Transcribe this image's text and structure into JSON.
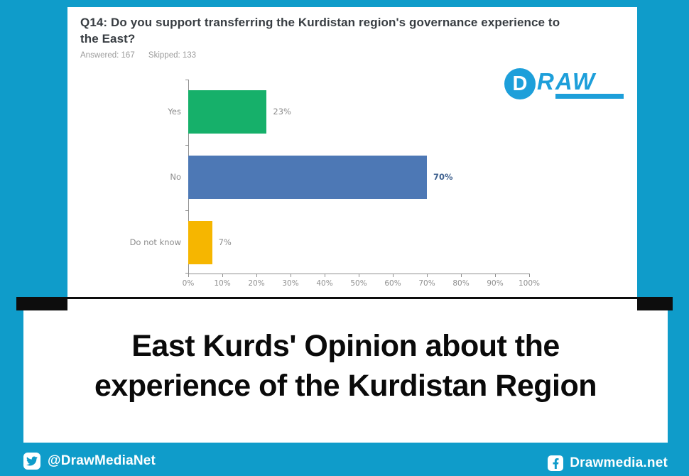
{
  "colors": {
    "background": "#0f9cca",
    "logo_cyan": "#1d9fda",
    "bar_green": "#16b06a",
    "bar_blue": "#4d78b5",
    "bar_yellow": "#f6b600",
    "black_bar": "#0d0d0d",
    "muted_text": "#8c8c8c"
  },
  "chart_card": {
    "question": "Q14: Do you support transferring the Kurdistan region's governance experience to the East?",
    "answered": "Answered: 167",
    "skipped": "Skipped: 133"
  },
  "logo": {
    "circle_letter": "D",
    "word": "RAW"
  },
  "chart_data": {
    "type": "bar",
    "orientation": "horizontal",
    "title": "Q14: Do you support transferring the Kurdistan region's governance experience to the East?",
    "answered": 167,
    "skipped": 133,
    "categories": [
      "Yes",
      "No",
      "Do not know"
    ],
    "values": [
      23,
      70,
      7
    ],
    "value_labels": [
      "23%",
      "70%",
      "7%"
    ],
    "bar_colors": [
      "#16b06a",
      "#4d78b5",
      "#f6b600"
    ],
    "value_label_colors": [
      "#8c8c8c",
      "#3f618f",
      "#8c8c8c"
    ],
    "value_label_bold": [
      false,
      true,
      false
    ],
    "xlim": [
      0,
      100
    ],
    "x_tick_labels": [
      "0%",
      "10%",
      "20%",
      "30%",
      "40%",
      "50%",
      "60%",
      "70%",
      "80%",
      "90%",
      "100%"
    ],
    "grid": false,
    "legend": false
  },
  "banner": {
    "line1": "East Kurds' Opinion about the",
    "line2": "experience of the Kurdistan Region"
  },
  "footer": {
    "twitter_handle": "@DrawMediaNet",
    "facebook_handle": "Drawmedia.net"
  }
}
